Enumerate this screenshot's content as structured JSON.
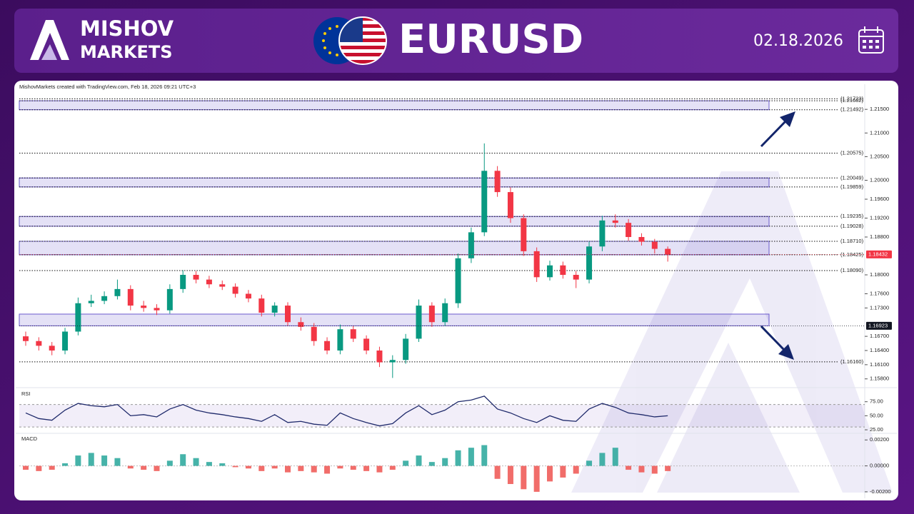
{
  "header": {
    "brand_line1": "MISHOV",
    "brand_line2": "MARKETS",
    "title": "EURUSD",
    "date": "02.18.2026"
  },
  "chart_data": [
    {
      "type": "candlestick",
      "annotation": "MishovMarkets created with TradingView.com, Feb 18, 2026 09:21 UTC+3",
      "open": [
        1.167,
        1.166,
        1.165,
        1.164,
        1.168,
        1.174,
        1.1745,
        1.1755,
        1.177,
        1.1735,
        1.173,
        1.1725,
        1.177,
        1.18,
        1.179,
        1.178,
        1.1775,
        1.176,
        1.175,
        1.172,
        1.1735,
        1.17,
        1.169,
        1.166,
        1.164,
        1.1685,
        1.1665,
        1.164,
        1.1615,
        1.162,
        1.1665,
        1.1735,
        1.17,
        1.174,
        1.1835,
        1.189,
        1.202,
        1.1975,
        1.192,
        1.185,
        1.1795,
        1.182,
        1.18,
        1.179,
        1.186,
        1.1915,
        1.191,
        1.188,
        1.187,
        1.1855
      ],
      "high": [
        1.168,
        1.1668,
        1.1658,
        1.1688,
        1.1752,
        1.1758,
        1.1765,
        1.179,
        1.1778,
        1.1745,
        1.1738,
        1.178,
        1.181,
        1.1808,
        1.1798,
        1.1788,
        1.1782,
        1.1768,
        1.1758,
        1.1742,
        1.1742,
        1.171,
        1.1698,
        1.1668,
        1.1695,
        1.1692,
        1.1672,
        1.1648,
        1.163,
        1.1675,
        1.1748,
        1.1742,
        1.175,
        1.1845,
        1.19,
        1.2078,
        1.203,
        1.1985,
        1.1928,
        1.1858,
        1.183,
        1.1828,
        1.1808,
        1.187,
        1.1925,
        1.1928,
        1.1918,
        1.1888,
        1.1876,
        1.186
      ],
      "low": [
        1.165,
        1.164,
        1.163,
        1.1632,
        1.1672,
        1.1732,
        1.1738,
        1.1748,
        1.1725,
        1.1722,
        1.1715,
        1.1718,
        1.1762,
        1.1782,
        1.1772,
        1.1768,
        1.1752,
        1.1742,
        1.1712,
        1.1712,
        1.1692,
        1.1682,
        1.165,
        1.1632,
        1.1632,
        1.1658,
        1.1632,
        1.1605,
        1.1582,
        1.1612,
        1.1658,
        1.169,
        1.1692,
        1.173,
        1.1825,
        1.1882,
        1.1965,
        1.191,
        1.184,
        1.1785,
        1.1788,
        1.1792,
        1.1772,
        1.1782,
        1.185,
        1.19,
        1.1872,
        1.1862,
        1.1845,
        1.1828
      ],
      "close": [
        1.166,
        1.165,
        1.164,
        1.168,
        1.174,
        1.1745,
        1.1755,
        1.177,
        1.1735,
        1.173,
        1.1725,
        1.177,
        1.18,
        1.179,
        1.178,
        1.1775,
        1.176,
        1.175,
        1.172,
        1.1735,
        1.17,
        1.169,
        1.166,
        1.164,
        1.1685,
        1.1665,
        1.164,
        1.1615,
        1.162,
        1.1665,
        1.1735,
        1.17,
        1.174,
        1.1835,
        1.189,
        1.202,
        1.1975,
        1.192,
        1.185,
        1.1795,
        1.182,
        1.18,
        1.179,
        1.186,
        1.1915,
        1.191,
        1.188,
        1.187,
        1.1855,
        1.1843
      ],
      "up_color": "#089981",
      "down_color": "#f23645",
      "ylim": [
        1.1566,
        1.2188
      ],
      "yticks": [
        {
          "value": 1.215,
          "label": "1.21500"
        },
        {
          "value": 1.21,
          "label": "1.21000"
        },
        {
          "value": 1.205,
          "label": "1.20500"
        },
        {
          "value": 1.2,
          "label": "1.20000"
        },
        {
          "value": 1.196,
          "label": "1.19600"
        },
        {
          "value": 1.192,
          "label": "1.19200"
        },
        {
          "value": 1.188,
          "label": "1.18800"
        },
        {
          "value": 1.18,
          "label": "1.18000"
        },
        {
          "value": 1.176,
          "label": "1.17600"
        },
        {
          "value": 1.173,
          "label": "1.17300"
        },
        {
          "value": 1.167,
          "label": "1.16700"
        },
        {
          "value": 1.164,
          "label": "1.16400"
        },
        {
          "value": 1.161,
          "label": "1.16100"
        },
        {
          "value": 1.158,
          "label": "1.15800"
        }
      ],
      "levels": [
        {
          "value": 1.21723,
          "label": "(1.21723)"
        },
        {
          "value": 1.21682,
          "label": "(1.21682)"
        },
        {
          "value": 1.21492,
          "label": "(1.21492)"
        },
        {
          "value": 1.20575,
          "label": "(1.20575)"
        },
        {
          "value": 1.20049,
          "label": "(1.20049)"
        },
        {
          "value": 1.19859,
          "label": "(1.19859)"
        },
        {
          "value": 1.19235,
          "label": "(1.19235)"
        },
        {
          "value": 1.19028,
          "label": "(1.19028)"
        },
        {
          "value": 1.1871,
          "label": "(1.18710)"
        },
        {
          "value": 1.18425,
          "label": "(1.18425)"
        },
        {
          "value": 1.1809,
          "label": "(1.18090)"
        },
        {
          "value": 1.1616,
          "label": "(1.16160)"
        }
      ],
      "zones": [
        [
          1.21492,
          1.21682
        ],
        [
          1.19859,
          1.20049
        ],
        [
          1.19028,
          1.19235
        ],
        [
          1.18425,
          1.1871
        ],
        [
          1.16923,
          1.1717
        ]
      ],
      "zone_color": "#6a5acd",
      "price_tags": [
        {
          "value": 1.18432,
          "color": "#f23645"
        },
        {
          "value": 1.16923,
          "color": "#131722"
        }
      ]
    },
    {
      "type": "line",
      "title": "RSI",
      "color": "#1f2a6b",
      "values": [
        55,
        45,
        42,
        60,
        72,
        68,
        66,
        70,
        50,
        52,
        48,
        62,
        70,
        60,
        55,
        52,
        48,
        45,
        40,
        52,
        38,
        40,
        35,
        33,
        55,
        45,
        38,
        32,
        36,
        55,
        68,
        52,
        60,
        75,
        78,
        85,
        62,
        55,
        45,
        38,
        50,
        42,
        40,
        62,
        72,
        65,
        55,
        52,
        48,
        50
      ],
      "band": [
        30,
        70
      ],
      "ylim": [
        21.25,
        96.25
      ],
      "yticks": [
        {
          "value": 75,
          "label": "75.00"
        },
        {
          "value": 50,
          "label": "50.00"
        },
        {
          "value": 25,
          "label": "25.00"
        }
      ]
    },
    {
      "type": "bar",
      "title": "MACD",
      "positive_color": "#26a69a",
      "negative_color": "#ef5350",
      "values": [
        -0.0003,
        -0.0004,
        -0.0003,
        0.0002,
        0.0008,
        0.001,
        0.0008,
        0.0006,
        -0.0002,
        -0.0003,
        -0.0004,
        0.0004,
        0.0009,
        0.0006,
        0.0003,
        0.0002,
        -0.0001,
        -0.0002,
        -0.0004,
        -0.0002,
        -0.0005,
        -0.0004,
        -0.0005,
        -0.0006,
        -0.0002,
        -0.0003,
        -0.0004,
        -0.0005,
        -0.0003,
        0.0004,
        0.0008,
        0.0003,
        0.0006,
        0.0012,
        0.0014,
        0.0016,
        -0.001,
        -0.0014,
        -0.0018,
        -0.002,
        -0.0012,
        -0.0009,
        -0.0006,
        0.0004,
        0.001,
        0.0014,
        -0.0003,
        -0.0005,
        -0.0006,
        -0.0004
      ],
      "ylim": [
        -0.0025,
        0.0024
      ],
      "yticks": [
        {
          "value": 0.002,
          "label": "0.00200"
        },
        {
          "value": 0,
          "label": "0.00000"
        },
        {
          "value": -0.002,
          "label": "-0.00200"
        }
      ]
    }
  ]
}
